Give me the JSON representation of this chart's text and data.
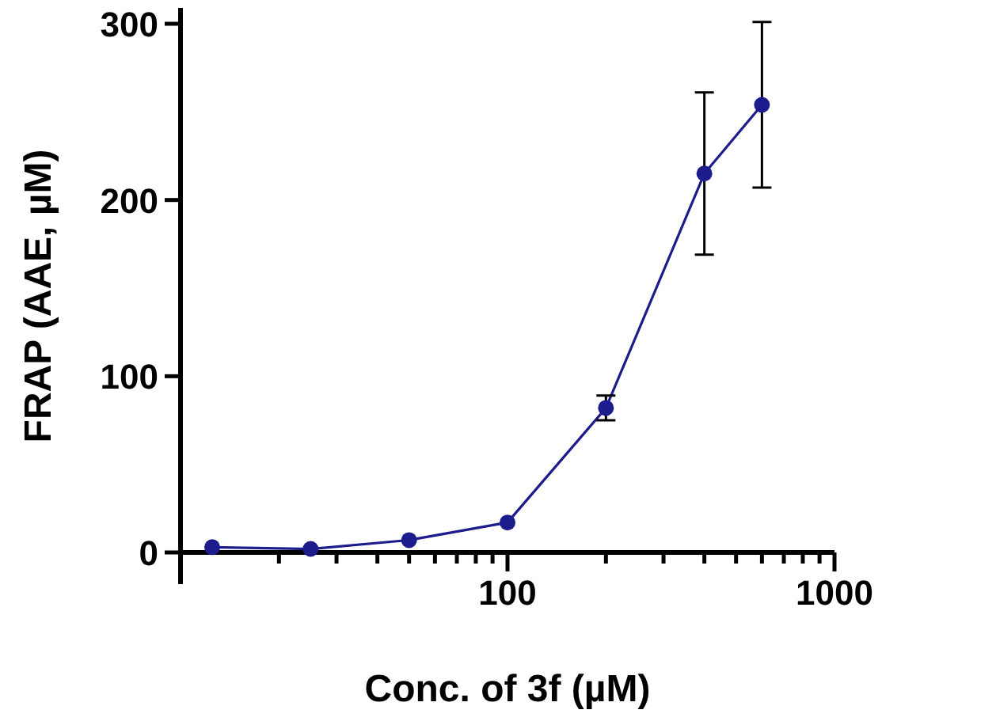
{
  "chart_data": {
    "type": "line",
    "xlabel": "Conc. of 3f (µM)",
    "ylabel": "FRAP (AAE, µM)",
    "log": "x",
    "xlim": [
      10,
      1000
    ],
    "xticks": [
      {
        "value": 20,
        "label": null
      },
      {
        "value": 30,
        "label": null
      },
      {
        "value": 40,
        "label": null
      },
      {
        "value": 50,
        "label": null
      },
      {
        "value": 60,
        "label": null
      },
      {
        "value": 70,
        "label": null
      },
      {
        "value": 80,
        "label": null
      },
      {
        "value": 90,
        "label": null
      },
      100,
      {
        "value": 200,
        "label": null
      },
      {
        "value": 300,
        "label": null
      },
      {
        "value": 400,
        "label": null
      },
      {
        "value": 500,
        "label": null
      },
      {
        "value": 600,
        "label": null
      },
      {
        "value": 700,
        "label": null
      },
      {
        "value": 800,
        "label": null
      },
      {
        "value": 900,
        "label": null
      },
      1000
    ],
    "ylim": [
      0,
      309
    ],
    "yticks": [
      0,
      100,
      200,
      300
    ],
    "grid": false,
    "marker": "circle",
    "line_style": "solid",
    "x": [
      12.5,
      25,
      50,
      100,
      200,
      400,
      600
    ],
    "series": [
      {
        "color": "#1c1c8c",
        "values": [
          3,
          2,
          7,
          17,
          82,
          215,
          254
        ],
        "errors": [
          null,
          null,
          null,
          null,
          7,
          46,
          47
        ]
      }
    ]
  }
}
